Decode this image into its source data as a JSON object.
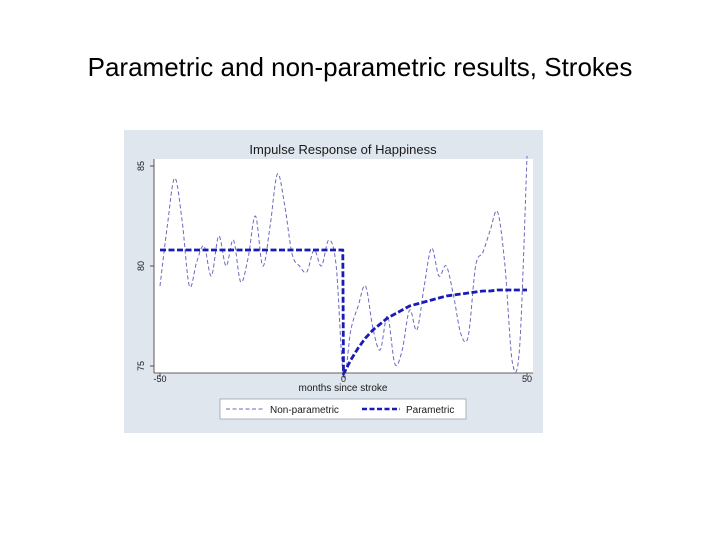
{
  "slide": {
    "title": "Parametric and non-parametric results, Strokes"
  },
  "colors": {
    "figure_bg": "#dfe6ee",
    "plot_bg": "#ffffff",
    "series": "#1a1ab4"
  },
  "chart_data": {
    "type": "line",
    "title": "Impulse Response of Happiness",
    "xlabel": "months since stroke",
    "ylabel": "",
    "xlim": [
      -50,
      50
    ],
    "ylim": [
      75,
      85
    ],
    "xticks": [
      -50,
      0,
      50
    ],
    "yticks": [
      75,
      80,
      85
    ],
    "grid": false,
    "legend_position": "bottom",
    "series": [
      {
        "name": "Non-parametric",
        "style": "dashed-thin",
        "x": [
          -50,
          -48,
          -46,
          -44,
          -42,
          -40,
          -38,
          -36,
          -34,
          -32,
          -30,
          -28,
          -26,
          -24,
          -22,
          -20,
          -18,
          -16,
          -14,
          -12,
          -10,
          -8,
          -6,
          -4,
          -2,
          0,
          2,
          4,
          6,
          8,
          10,
          12,
          14,
          16,
          18,
          20,
          22,
          24,
          26,
          28,
          30,
          32,
          34,
          36,
          38,
          40,
          42,
          44,
          46,
          48,
          50
        ],
        "y": [
          79.0,
          82.0,
          84.4,
          82.3,
          79.0,
          80.2,
          81.0,
          79.5,
          81.5,
          80.0,
          81.3,
          79.2,
          80.4,
          82.5,
          80.0,
          82.0,
          84.6,
          83.0,
          80.6,
          80.0,
          79.7,
          80.8,
          80.0,
          81.3,
          80.0,
          74.5,
          76.8,
          78.0,
          79.0,
          76.9,
          75.8,
          77.5,
          75.1,
          75.8,
          77.8,
          76.8,
          79.0,
          80.9,
          79.5,
          80.0,
          78.5,
          76.6,
          76.5,
          80.0,
          80.7,
          81.8,
          82.7,
          80.0,
          75.2,
          76.0,
          85.5
        ]
      },
      {
        "name": "Parametric",
        "style": "dashed-thick",
        "x": [
          -50,
          -0.2,
          0,
          2,
          4,
          6,
          8,
          10,
          12,
          14,
          16,
          18,
          20,
          22,
          24,
          26,
          28,
          30,
          32,
          34,
          36,
          38,
          40,
          42,
          44,
          46,
          48,
          50
        ],
        "y": [
          80.8,
          80.8,
          74.6,
          75.3,
          75.9,
          76.4,
          76.8,
          77.1,
          77.4,
          77.6,
          77.8,
          78.0,
          78.1,
          78.2,
          78.3,
          78.4,
          78.5,
          78.55,
          78.6,
          78.65,
          78.7,
          78.75,
          78.75,
          78.8,
          78.8,
          78.8,
          78.8,
          78.8
        ]
      }
    ]
  }
}
